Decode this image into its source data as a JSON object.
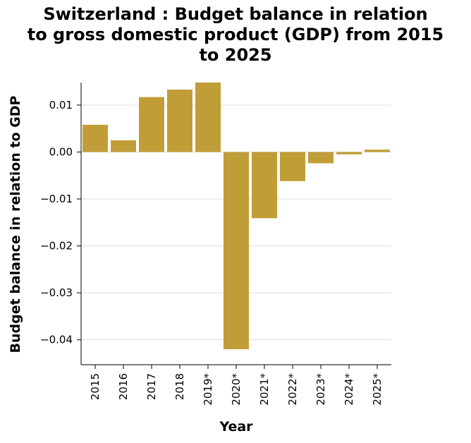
{
  "chart_data": {
    "type": "bar",
    "title_lines": [
      "Switzerland : Budget balance in relation",
      "to gross domestic product (GDP) from 2015",
      "to 2025"
    ],
    "xlabel": "Year",
    "ylabel": "Budget balance in relation to GDP",
    "categories": [
      "2015",
      "2016",
      "2017",
      "2018",
      "2019*",
      "2020*",
      "2021*",
      "2022*",
      "2023*",
      "2024*",
      "2025*"
    ],
    "values": [
      0.0058,
      0.0025,
      0.0117,
      0.0133,
      0.0148,
      -0.042,
      -0.0141,
      -0.0062,
      -0.0024,
      -0.0005,
      0.0005
    ],
    "ylim": [
      -0.0453,
      0.0148
    ],
    "yticks": [
      0.01,
      0.0,
      -0.01,
      -0.02,
      -0.03,
      -0.04
    ],
    "ytick_labels": [
      "0.01",
      "0.00",
      "−0.01",
      "−0.02",
      "−0.03",
      "−0.04"
    ],
    "grid": true,
    "bar_color": "#c19d37"
  }
}
